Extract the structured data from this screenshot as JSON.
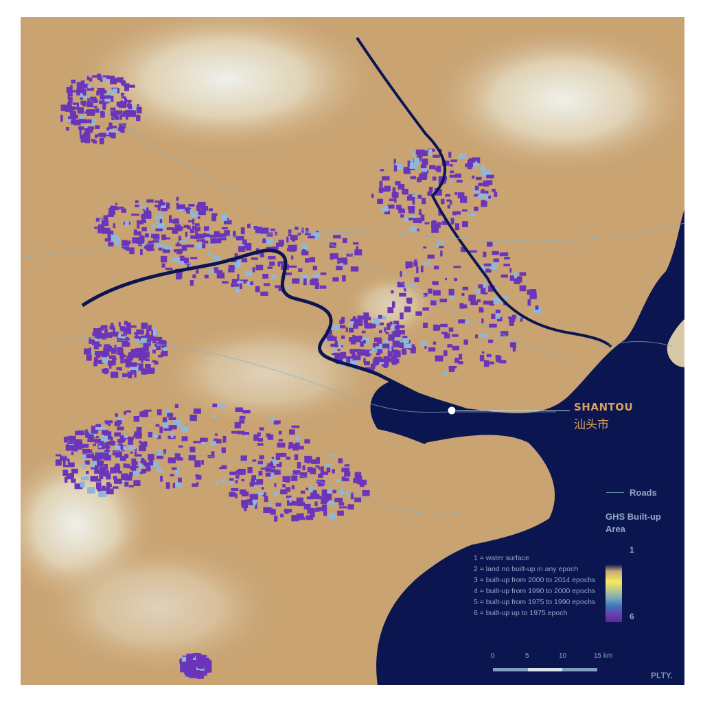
{
  "colors": {
    "sea": "#0b1550",
    "land": "#c9a372",
    "built_up": "#6a35b8",
    "roads": "#7fb0c8",
    "highland": "#e8e6dc",
    "label": "#d9a35e",
    "legend_text": "#8fa9c4"
  },
  "city": {
    "name_en": "SHANTOU",
    "name_zh": "汕头市"
  },
  "legend": {
    "roads_label": "Roads",
    "title": "GHS Built-up Area",
    "ramp_top": "1",
    "ramp_bottom": "6",
    "categories": [
      "1 = water surface",
      "2 = land no built-up in any epoch",
      "3 = built-up from 2000 to 2014 epochs",
      "4 = built-up from 1990 to 2000 epochs",
      "5 = built-up from 1975 to 1990 epochs",
      "6 = built-up up to 1975 epoch"
    ]
  },
  "scale_bar": {
    "ticks": [
      "0",
      "5",
      "10",
      "15 km"
    ]
  },
  "logo": "PLTY."
}
